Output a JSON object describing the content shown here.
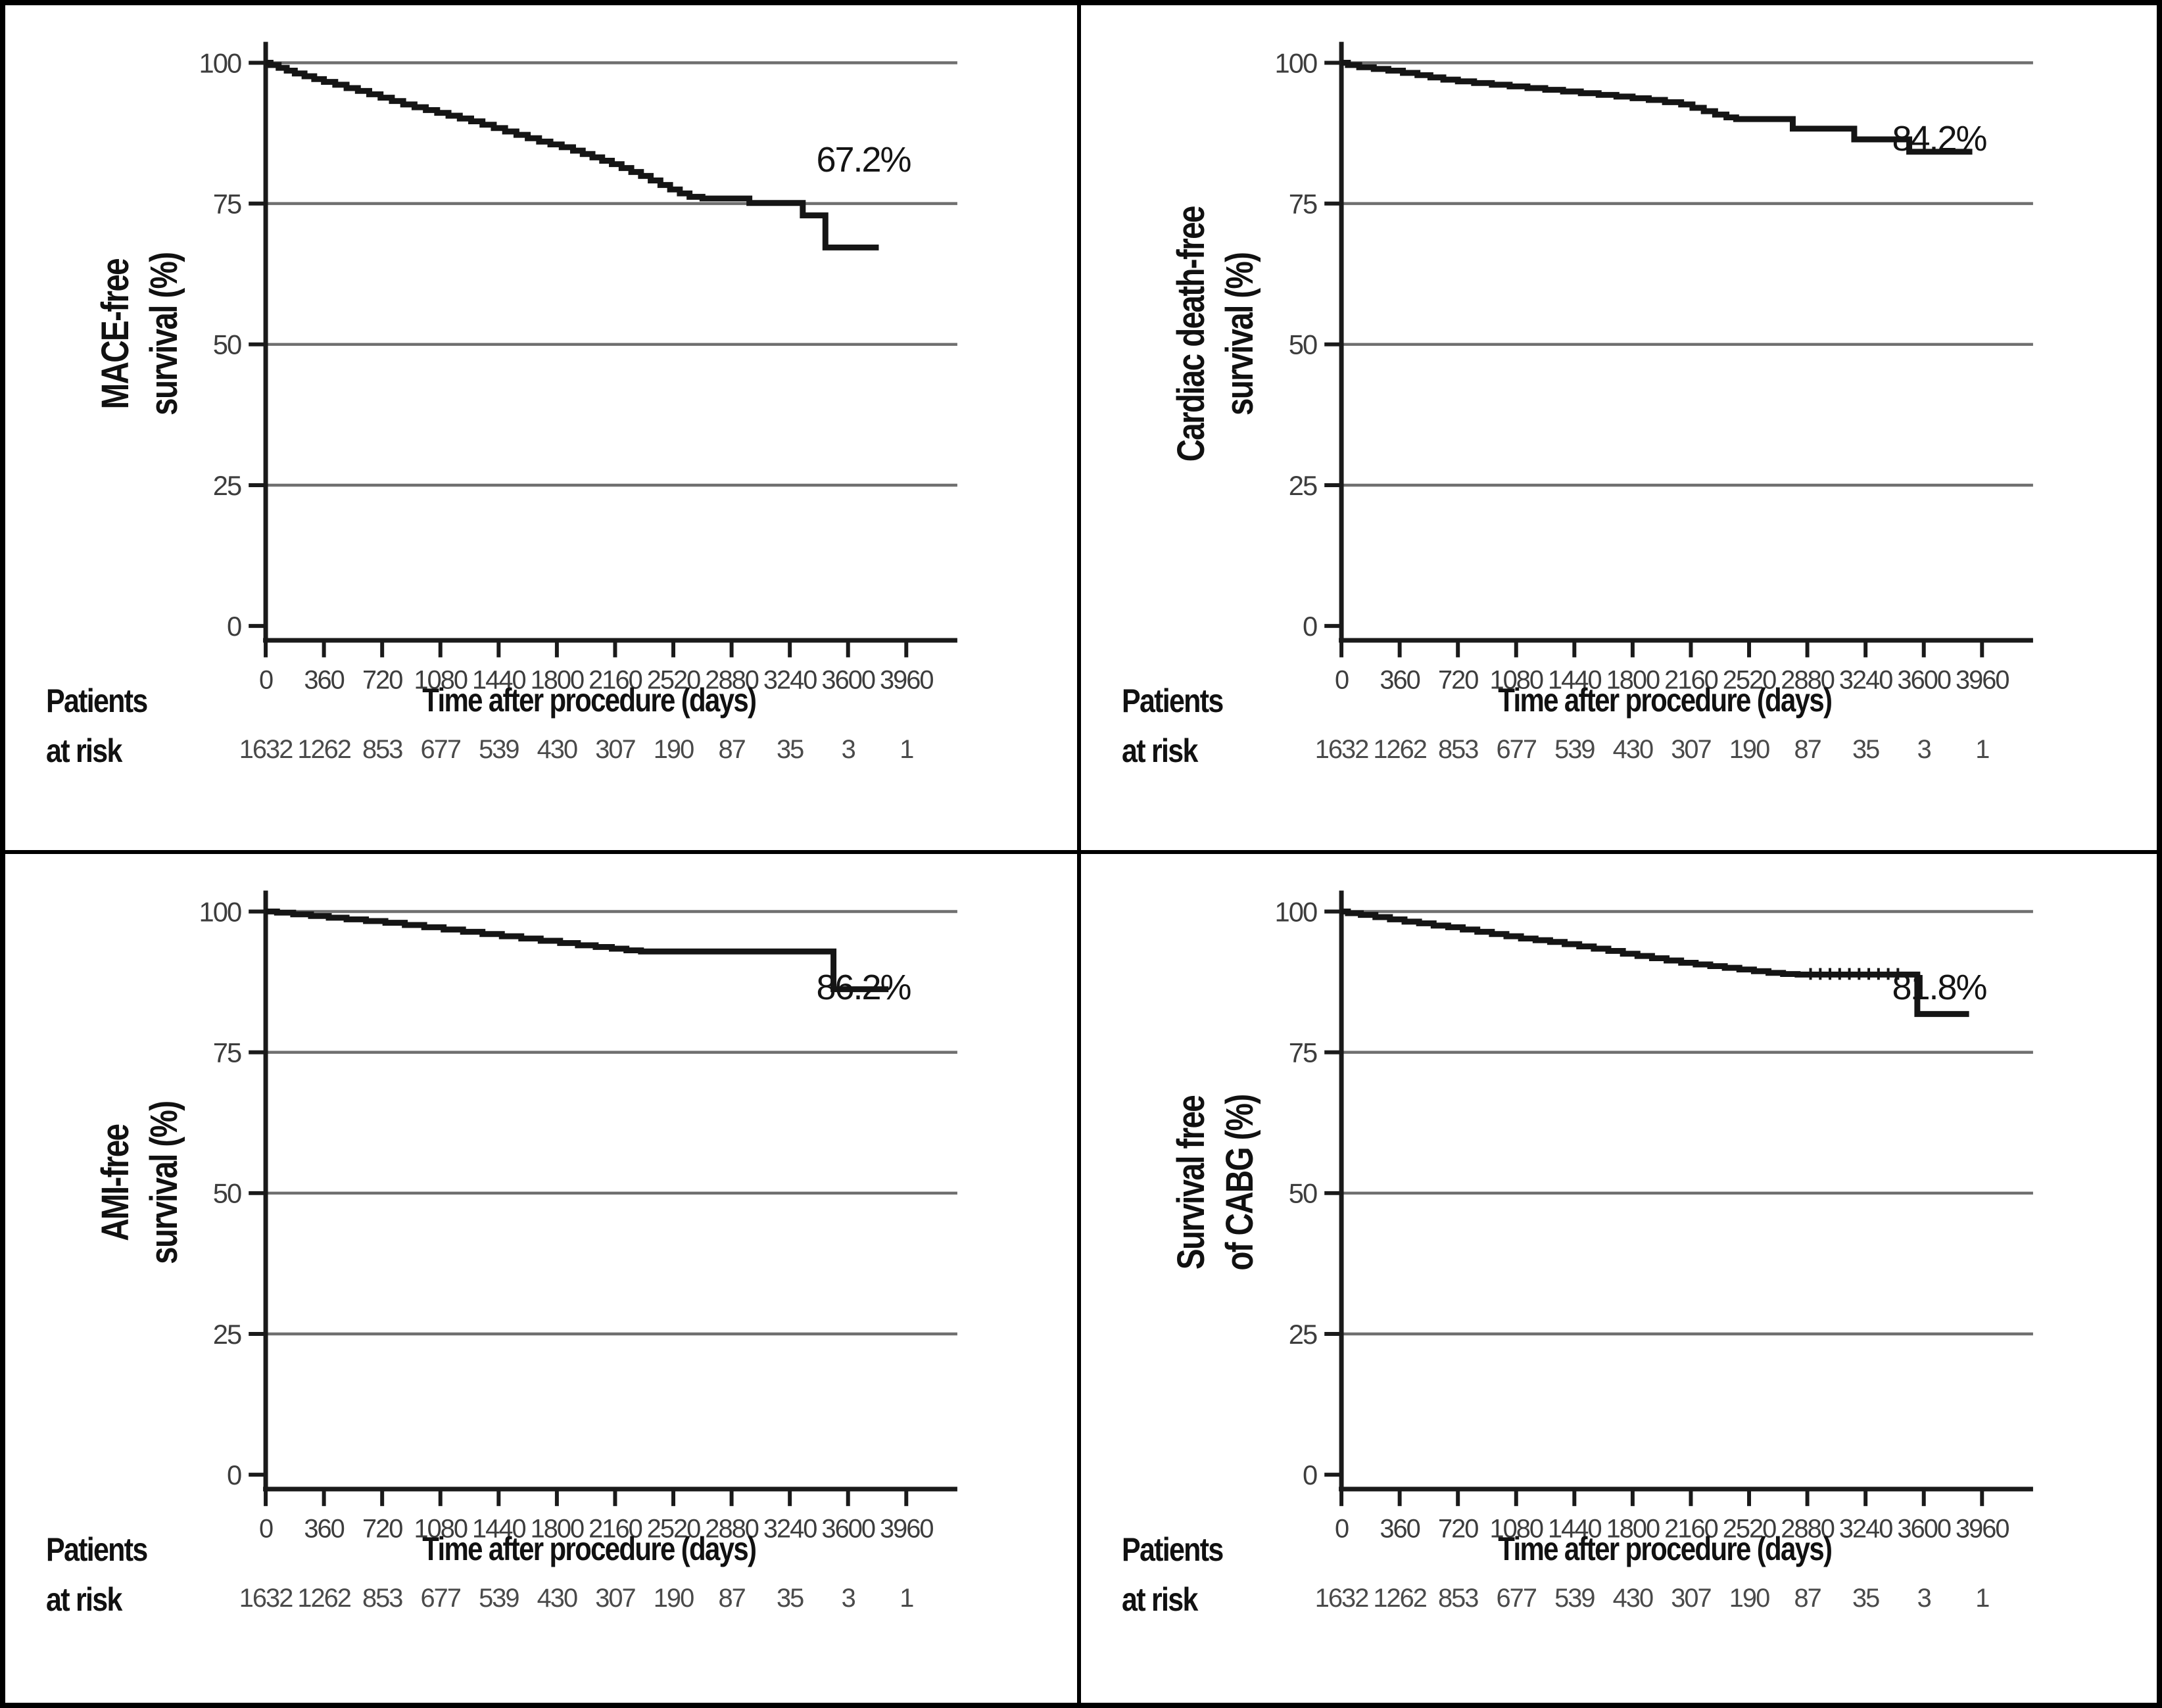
{
  "figure": {
    "xlabel": "Time after procedure (days)",
    "at_risk_label_lines": [
      "Patients",
      "at risk"
    ],
    "background_color": "#ffffff",
    "curve_color": "#151515",
    "grid_color": "#6f6f6f",
    "axis_color": "#1a1a1a",
    "tick_label_color": "#3d3d3d"
  },
  "chart_data": [
    {
      "type": "line",
      "subtype": "kaplan-meier-step",
      "panel": "top-left",
      "ylabel_lines": [
        "MACE-free",
        "survival (%)"
      ],
      "xlabel": "Time after procedure (days)",
      "annotation": "67.2%",
      "final_value": 67.2,
      "ylim": [
        0,
        100
      ],
      "xlim": [
        0,
        4280
      ],
      "y_ticks": [
        100,
        75,
        50,
        25,
        0
      ],
      "x_ticks": [
        0,
        360,
        720,
        1080,
        1440,
        1800,
        2160,
        2520,
        2880,
        3240,
        3600,
        3960
      ],
      "grid": "horizontal",
      "legend": "none",
      "patients_at_risk": [
        1632,
        1262,
        853,
        677,
        539,
        430,
        307,
        190,
        87,
        35,
        3,
        1
      ],
      "steps": [
        [
          0,
          100
        ],
        [
          30,
          99.6
        ],
        [
          80,
          99.1
        ],
        [
          130,
          98.6
        ],
        [
          180,
          98.1
        ],
        [
          240,
          97.6
        ],
        [
          300,
          97.1
        ],
        [
          360,
          96.6
        ],
        [
          430,
          96.1
        ],
        [
          500,
          95.5
        ],
        [
          570,
          95.0
        ],
        [
          640,
          94.4
        ],
        [
          710,
          93.8
        ],
        [
          780,
          93.2
        ],
        [
          850,
          92.6
        ],
        [
          920,
          92.1
        ],
        [
          990,
          91.6
        ],
        [
          1060,
          91.1
        ],
        [
          1130,
          90.6
        ],
        [
          1200,
          90.1
        ],
        [
          1270,
          89.6
        ],
        [
          1340,
          89.0
        ],
        [
          1410,
          88.4
        ],
        [
          1480,
          87.8
        ],
        [
          1550,
          87.2
        ],
        [
          1620,
          86.6
        ],
        [
          1690,
          86.0
        ],
        [
          1760,
          85.5
        ],
        [
          1830,
          85.0
        ],
        [
          1900,
          84.4
        ],
        [
          1960,
          83.8
        ],
        [
          2020,
          83.2
        ],
        [
          2080,
          82.6
        ],
        [
          2140,
          82.0
        ],
        [
          2200,
          81.3
        ],
        [
          2260,
          80.6
        ],
        [
          2320,
          79.9
        ],
        [
          2380,
          79.1
        ],
        [
          2440,
          78.3
        ],
        [
          2500,
          77.5
        ],
        [
          2560,
          76.8
        ],
        [
          2620,
          76.2
        ],
        [
          2700,
          75.9
        ],
        [
          2990,
          75.1
        ],
        [
          3320,
          72.9
        ],
        [
          3460,
          67.2
        ]
      ],
      "end_day": 3790,
      "censor_days": [],
      "censor_value": null
    },
    {
      "type": "line",
      "subtype": "kaplan-meier-step",
      "panel": "top-right",
      "ylabel_lines": [
        "Cardiac death-free",
        "survival (%)"
      ],
      "xlabel": "Time after procedure (days)",
      "annotation": "84.2%",
      "final_value": 84.2,
      "ylim": [
        0,
        100
      ],
      "xlim": [
        0,
        4280
      ],
      "y_ticks": [
        100,
        75,
        50,
        25,
        0
      ],
      "x_ticks": [
        0,
        360,
        720,
        1080,
        1440,
        1800,
        2160,
        2520,
        2880,
        3240,
        3600,
        3960
      ],
      "grid": "horizontal",
      "legend": "none",
      "patients_at_risk": [
        1632,
        1262,
        853,
        677,
        539,
        430,
        307,
        190,
        87,
        35,
        3,
        1
      ],
      "steps": [
        [
          0,
          100
        ],
        [
          40,
          99.6
        ],
        [
          110,
          99.2
        ],
        [
          200,
          98.9
        ],
        [
          290,
          98.6
        ],
        [
          380,
          98.2
        ],
        [
          470,
          97.8
        ],
        [
          550,
          97.4
        ],
        [
          630,
          97.0
        ],
        [
          720,
          96.7
        ],
        [
          820,
          96.4
        ],
        [
          930,
          96.1
        ],
        [
          1040,
          95.8
        ],
        [
          1150,
          95.5
        ],
        [
          1260,
          95.2
        ],
        [
          1370,
          94.9
        ],
        [
          1480,
          94.6
        ],
        [
          1590,
          94.3
        ],
        [
          1700,
          94.0
        ],
        [
          1800,
          93.7
        ],
        [
          1900,
          93.4
        ],
        [
          2000,
          93.0
        ],
        [
          2100,
          92.6
        ],
        [
          2170,
          92.0
        ],
        [
          2240,
          91.4
        ],
        [
          2310,
          90.8
        ],
        [
          2380,
          90.3
        ],
        [
          2440,
          90.0
        ],
        [
          2790,
          88.3
        ],
        [
          3170,
          86.4
        ],
        [
          3510,
          84.2
        ]
      ],
      "end_day": 3900,
      "censor_days": [],
      "censor_value": null
    },
    {
      "type": "line",
      "subtype": "kaplan-meier-step",
      "panel": "bottom-left",
      "ylabel_lines": [
        "AMI-free",
        "survival (%)"
      ],
      "xlabel": "Time after procedure (days)",
      "annotation": "86.2%",
      "final_value": 86.2,
      "ylim": [
        0,
        100
      ],
      "xlim": [
        0,
        4280
      ],
      "y_ticks": [
        100,
        75,
        50,
        25,
        0
      ],
      "x_ticks": [
        0,
        360,
        720,
        1080,
        1440,
        1800,
        2160,
        2520,
        2880,
        3240,
        3600,
        3960
      ],
      "grid": "horizontal",
      "legend": "none",
      "patients_at_risk": [
        1632,
        1262,
        853,
        677,
        539,
        430,
        307,
        190,
        87,
        35,
        3,
        1
      ],
      "steps": [
        [
          0,
          100
        ],
        [
          70,
          99.8
        ],
        [
          170,
          99.5
        ],
        [
          280,
          99.2
        ],
        [
          390,
          98.9
        ],
        [
          500,
          98.6
        ],
        [
          620,
          98.3
        ],
        [
          740,
          98.0
        ],
        [
          860,
          97.6
        ],
        [
          980,
          97.2
        ],
        [
          1100,
          96.8
        ],
        [
          1220,
          96.4
        ],
        [
          1340,
          96.0
        ],
        [
          1460,
          95.6
        ],
        [
          1580,
          95.2
        ],
        [
          1700,
          94.8
        ],
        [
          1820,
          94.4
        ],
        [
          1930,
          94.0
        ],
        [
          2040,
          93.7
        ],
        [
          2140,
          93.4
        ],
        [
          2230,
          93.1
        ],
        [
          2320,
          92.9
        ],
        [
          3510,
          86.2
        ]
      ],
      "end_day": 3850,
      "censor_days": [],
      "censor_value": null
    },
    {
      "type": "line",
      "subtype": "kaplan-meier-step",
      "panel": "bottom-right",
      "ylabel_lines": [
        "Survival free",
        "of CABG (%)"
      ],
      "xlabel": "Time after procedure (days)",
      "annotation": "81.8%",
      "final_value": 81.8,
      "ylim": [
        0,
        100
      ],
      "xlim": [
        0,
        4280
      ],
      "y_ticks": [
        100,
        75,
        50,
        25,
        0
      ],
      "x_ticks": [
        0,
        360,
        720,
        1080,
        1440,
        1800,
        2160,
        2520,
        2880,
        3240,
        3600,
        3960
      ],
      "grid": "horizontal",
      "legend": "none",
      "patients_at_risk": [
        1632,
        1262,
        853,
        677,
        539,
        430,
        307,
        190,
        87,
        35,
        3,
        1
      ],
      "steps": [
        [
          0,
          100
        ],
        [
          40,
          99.7
        ],
        [
          120,
          99.4
        ],
        [
          210,
          99.0
        ],
        [
          300,
          98.6
        ],
        [
          390,
          98.2
        ],
        [
          480,
          97.9
        ],
        [
          570,
          97.5
        ],
        [
          660,
          97.2
        ],
        [
          750,
          96.8
        ],
        [
          840,
          96.4
        ],
        [
          930,
          96.0
        ],
        [
          1020,
          95.6
        ],
        [
          1110,
          95.2
        ],
        [
          1200,
          94.9
        ],
        [
          1290,
          94.6
        ],
        [
          1380,
          94.2
        ],
        [
          1470,
          93.8
        ],
        [
          1560,
          93.4
        ],
        [
          1650,
          93.0
        ],
        [
          1740,
          92.5
        ],
        [
          1830,
          92.1
        ],
        [
          1920,
          91.7
        ],
        [
          2010,
          91.3
        ],
        [
          2100,
          90.9
        ],
        [
          2190,
          90.6
        ],
        [
          2280,
          90.3
        ],
        [
          2370,
          90.0
        ],
        [
          2460,
          89.7
        ],
        [
          2550,
          89.4
        ],
        [
          2640,
          89.1
        ],
        [
          2730,
          88.9
        ],
        [
          2820,
          88.8
        ],
        [
          3560,
          81.8
        ]
      ],
      "end_day": 3880,
      "censor_days": [
        2900,
        2960,
        3020,
        3080,
        3140,
        3200,
        3260,
        3320,
        3380,
        3440
      ],
      "censor_value": 88.8
    }
  ]
}
